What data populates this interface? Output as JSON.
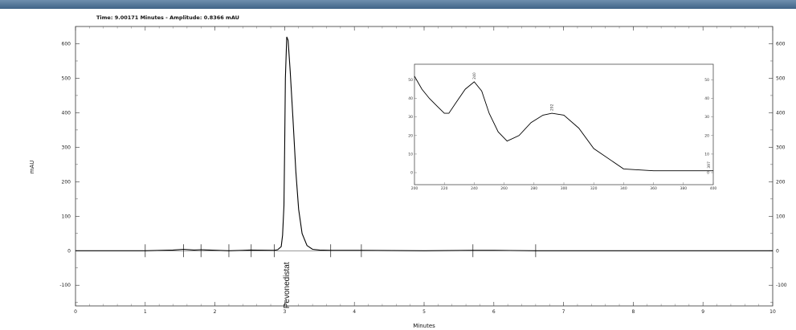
{
  "header": {
    "readout": "Time:  9.00171 Minutes - Amplitude:  0.8366 mAU"
  },
  "chart_data": {
    "type": "line",
    "title": "",
    "xlabel": "Minutes",
    "ylabel": "mAU",
    "xlim": [
      0,
      10
    ],
    "ylim": [
      -160,
      650
    ],
    "x_ticks": [
      0,
      1,
      2,
      3,
      4,
      5,
      6,
      7,
      8,
      9,
      10
    ],
    "y_ticks": [
      -100,
      0,
      100,
      200,
      300,
      400,
      500,
      600
    ],
    "series": [
      {
        "x": [
          0.0,
          1.0,
          1.4,
          1.55,
          1.7,
          1.8,
          2.2,
          2.4,
          2.5,
          2.85,
          2.9,
          2.95,
          2.97,
          2.99,
          3.0,
          3.01,
          3.03,
          3.05,
          3.08,
          3.12,
          3.16,
          3.2,
          3.25,
          3.32,
          3.4,
          3.5,
          3.66,
          3.9,
          4.1,
          5.0,
          5.7,
          6.0,
          6.6,
          7.0,
          8.0,
          9.0,
          10.0
        ],
        "y": [
          0,
          0,
          2,
          4,
          2,
          3,
          0,
          1,
          2,
          1,
          3,
          12,
          45,
          130,
          300,
          500,
          620,
          610,
          520,
          380,
          230,
          120,
          50,
          15,
          4,
          2,
          1,
          1,
          1,
          0,
          1,
          1,
          0,
          0,
          0,
          0,
          0
        ]
      }
    ],
    "markers_x": [
      1.0,
      1.55,
      1.8,
      2.2,
      2.52,
      2.85,
      3.66,
      4.1,
      5.7,
      6.6
    ],
    "peak_labels": [
      {
        "x": 3.02,
        "text": "Pevonedistat"
      }
    ],
    "inset": {
      "type": "line",
      "header": "",
      "x_ticks": [
        200,
        220,
        240,
        260,
        280,
        300,
        320,
        340,
        360,
        380,
        400
      ],
      "y_ticks": [
        0,
        10,
        20,
        30,
        40,
        50
      ],
      "x": [
        200,
        205,
        210,
        215,
        220,
        223,
        228,
        234,
        240,
        245,
        250,
        256,
        262,
        270,
        278,
        286,
        292,
        300,
        310,
        320,
        340,
        360,
        380,
        400
      ],
      "y": [
        52,
        45,
        40,
        36,
        32,
        32,
        38,
        45,
        49,
        44,
        32,
        22,
        17,
        20,
        27,
        31,
        32,
        31,
        24,
        13,
        2,
        1,
        1,
        1
      ],
      "point_labels": [
        {
          "x": 240,
          "y": 49,
          "text": "240"
        },
        {
          "x": 292,
          "y": 32,
          "text": "292"
        },
        {
          "x": 397,
          "y": 1,
          "text": "397"
        }
      ]
    }
  }
}
